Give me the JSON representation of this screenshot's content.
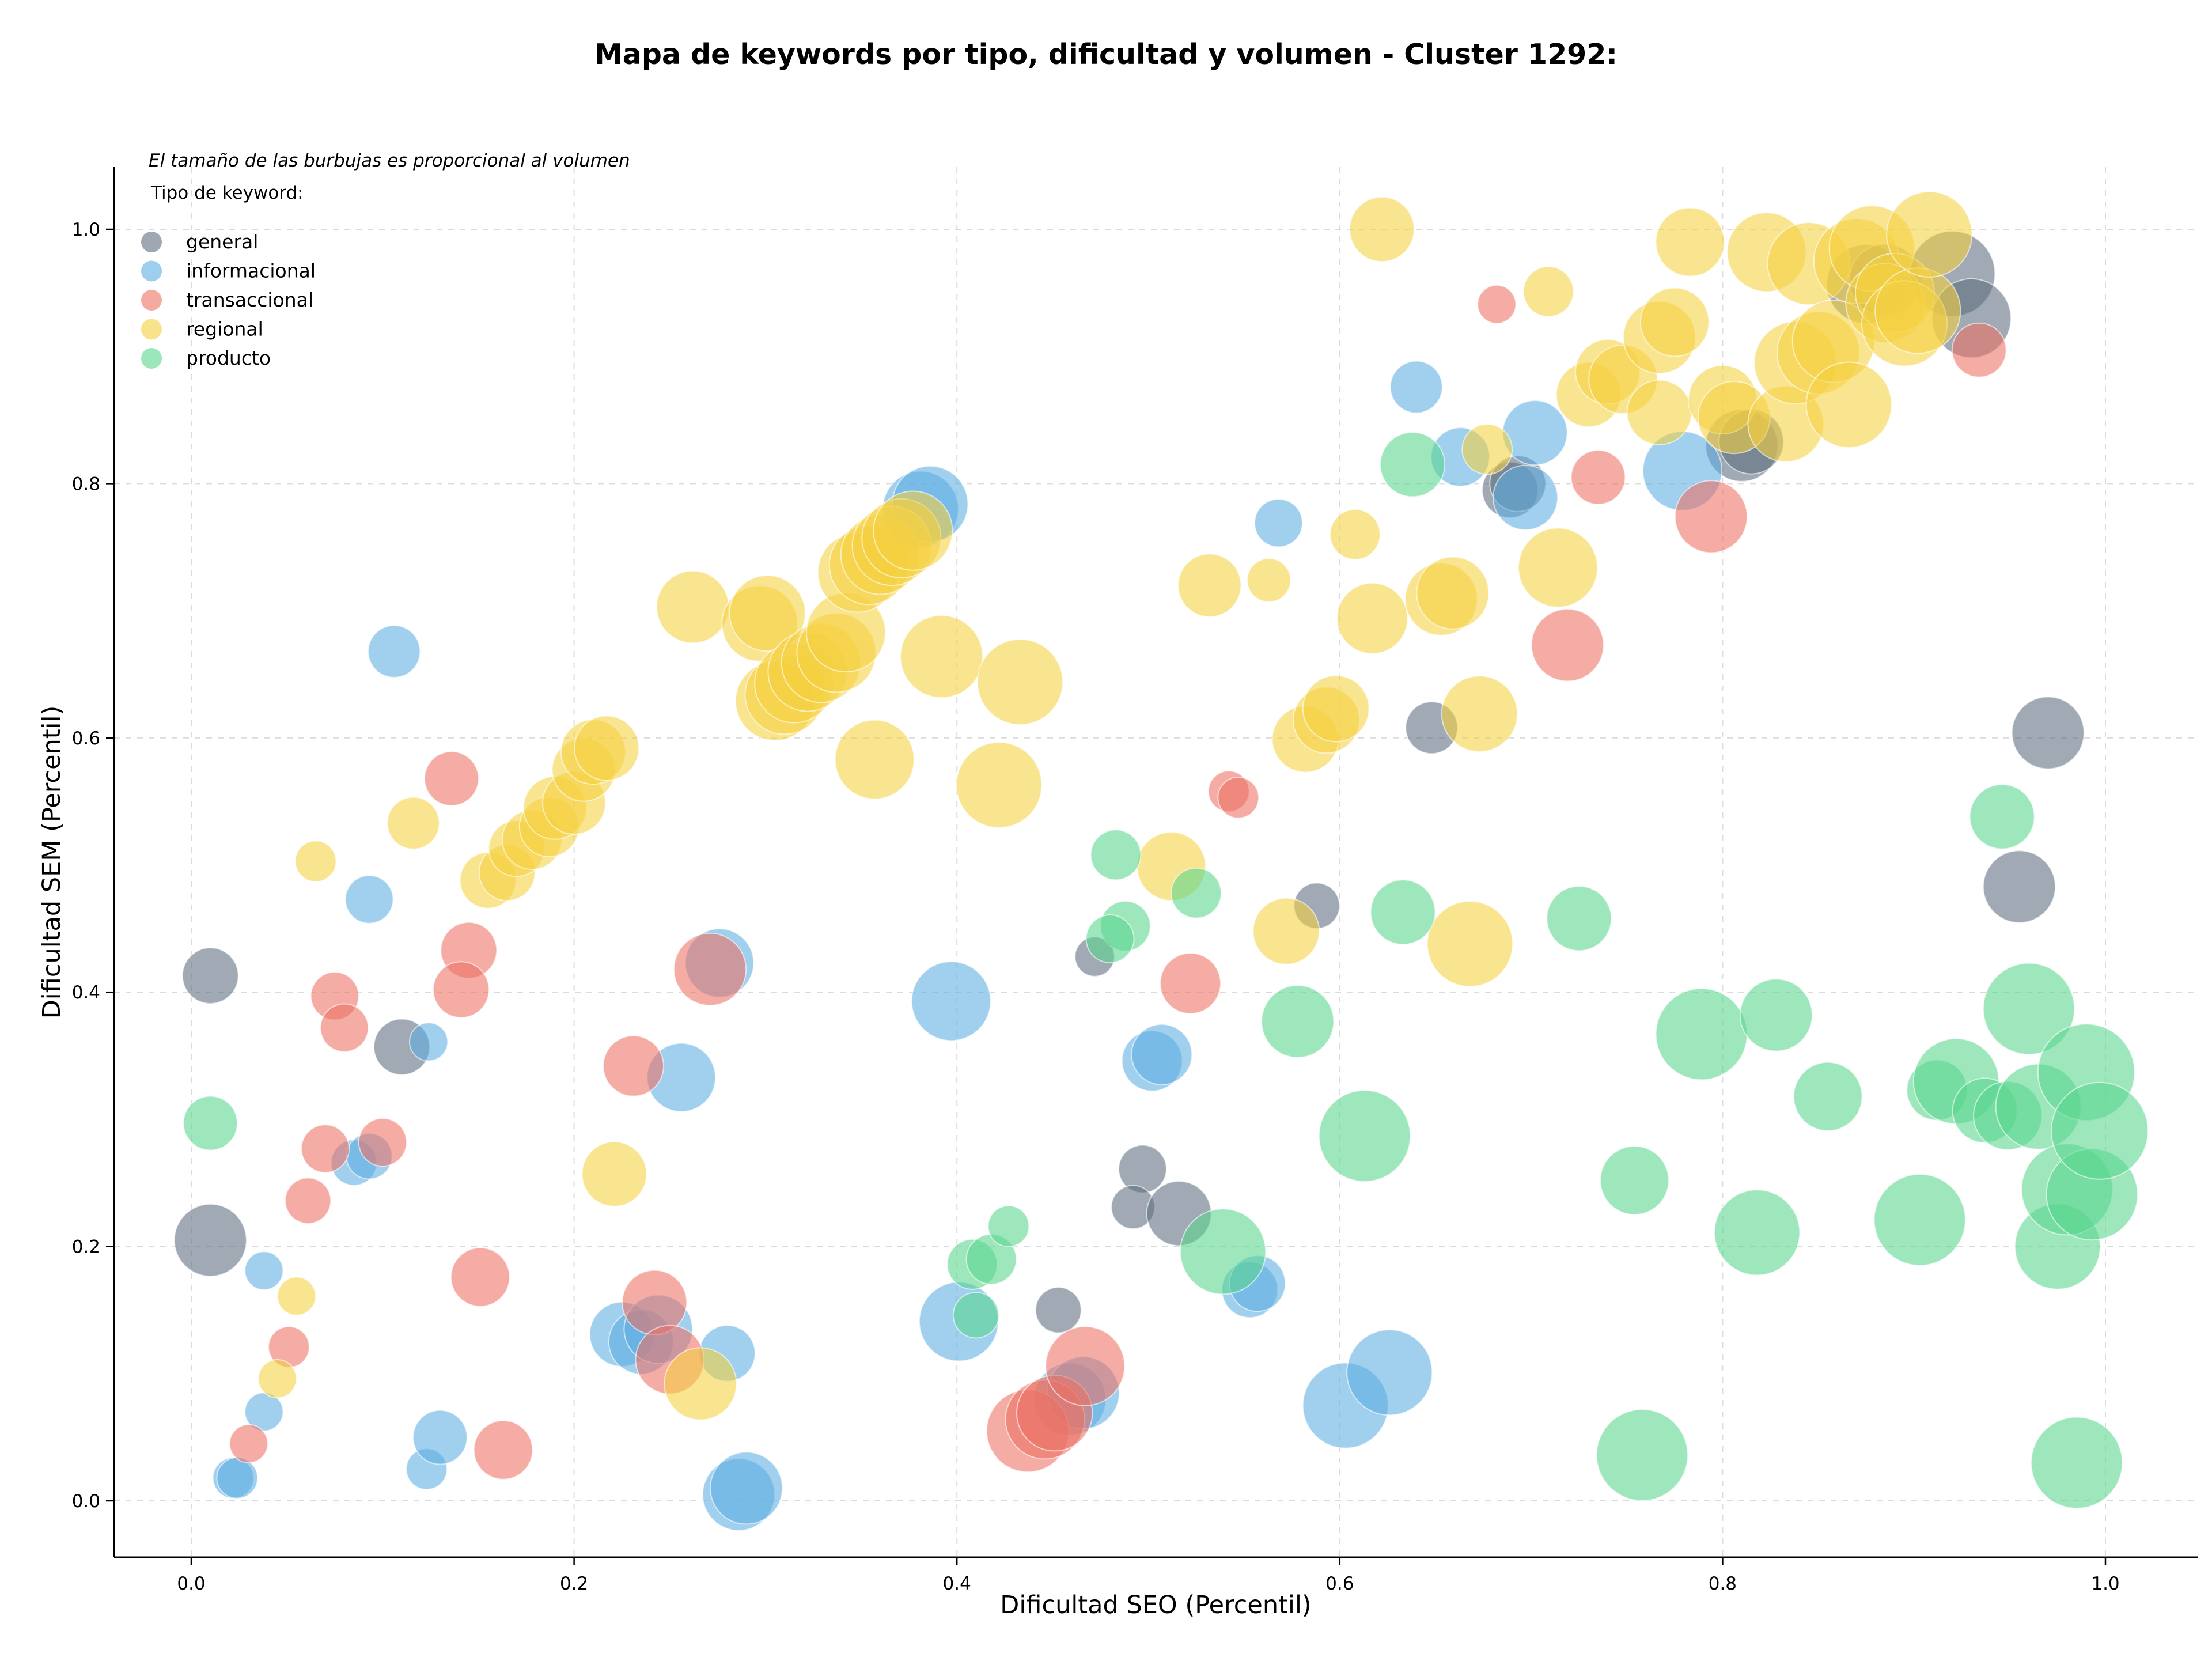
{
  "chart_data": {
    "type": "scatter",
    "title": "Mapa de keywords por tipo, dificultad y volumen - Cluster 1292:",
    "xlabel": "Dificultad SEO (Percentil)",
    "ylabel": "Dificultad SEM (Percentil)",
    "xlim": [
      -0.04,
      1.05
    ],
    "ylim": [
      -0.045,
      1.05
    ],
    "xticks": [
      "0.0",
      "0.2",
      "0.4",
      "0.6",
      "0.8",
      "1.0"
    ],
    "yticks": [
      "0.0",
      "0.2",
      "0.4",
      "0.6",
      "0.8",
      "1.0"
    ],
    "grid": true,
    "legend_position": "top-left",
    "size_note": "El tamaño de las burbujas es proporcional al volumen",
    "legend_title": "Tipo de keyword:",
    "series": [
      {
        "name": "general",
        "color": "#5d6d7e",
        "points": [
          [
            0.01,
            0.413,
            3
          ],
          [
            0.01,
            0.205,
            5
          ],
          [
            0.11,
            0.357,
            3
          ],
          [
            0.472,
            0.428,
            1.5
          ],
          [
            0.453,
            0.15,
            2
          ],
          [
            0.497,
            0.261,
            2.2
          ],
          [
            0.492,
            0.231,
            1.8
          ],
          [
            0.516,
            0.226,
            4
          ],
          [
            0.588,
            0.468,
            2
          ],
          [
            0.648,
            0.608,
            2.6
          ],
          [
            0.689,
            0.795,
            3
          ],
          [
            0.693,
            0.8,
            3
          ],
          [
            0.81,
            0.83,
            5
          ],
          [
            0.815,
            0.833,
            4
          ],
          [
            0.875,
            0.957,
            6
          ],
          [
            0.885,
            0.96,
            5
          ],
          [
            0.92,
            0.965,
            7
          ],
          [
            0.93,
            0.93,
            6
          ],
          [
            0.97,
            0.604,
            5
          ],
          [
            0.955,
            0.483,
            5
          ]
        ]
      },
      {
        "name": "informacional",
        "color": "#5dade2",
        "points": [
          [
            0.106,
            0.668,
            2.6
          ],
          [
            0.093,
            0.473,
            2.2
          ],
          [
            0.124,
            0.361,
            1.4
          ],
          [
            0.085,
            0.266,
            2
          ],
          [
            0.093,
            0.271,
            2
          ],
          [
            0.038,
            0.181,
            1.4
          ],
          [
            0.038,
            0.07,
            1.4
          ],
          [
            0.022,
            0.018,
            1.6
          ],
          [
            0.024,
            0.018,
            1.6
          ],
          [
            0.123,
            0.025,
            1.6
          ],
          [
            0.13,
            0.05,
            2.8
          ],
          [
            0.276,
            0.423,
            4.5
          ],
          [
            0.256,
            0.333,
            4.5
          ],
          [
            0.225,
            0.131,
            4
          ],
          [
            0.235,
            0.125,
            4
          ],
          [
            0.244,
            0.135,
            4.5
          ],
          [
            0.28,
            0.116,
            3
          ],
          [
            0.286,
            0.005,
            5
          ],
          [
            0.29,
            0.01,
            5
          ],
          [
            0.381,
            0.78,
            5.5
          ],
          [
            0.386,
            0.784,
            5.5
          ],
          [
            0.397,
            0.393,
            6
          ],
          [
            0.401,
            0.141,
            6
          ],
          [
            0.459,
            0.08,
            5
          ],
          [
            0.466,
            0.085,
            5
          ],
          [
            0.502,
            0.346,
            3.5
          ],
          [
            0.507,
            0.351,
            3.5
          ],
          [
            0.553,
            0.166,
            3
          ],
          [
            0.557,
            0.171,
            3
          ],
          [
            0.568,
            0.769,
            2.2
          ],
          [
            0.603,
            0.075,
            7
          ],
          [
            0.626,
            0.101,
            7
          ],
          [
            0.64,
            0.876,
            2.6
          ],
          [
            0.663,
            0.821,
            3.3
          ],
          [
            0.697,
            0.789,
            4
          ],
          [
            0.702,
            0.84,
            4
          ],
          [
            0.779,
            0.81,
            6
          ]
        ]
      },
      {
        "name": "transaccional",
        "color": "#ec7063",
        "points": [
          [
            0.136,
            0.568,
            2.8
          ],
          [
            0.145,
            0.433,
            3
          ],
          [
            0.141,
            0.402,
            3
          ],
          [
            0.075,
            0.397,
            2.2
          ],
          [
            0.08,
            0.372,
            2.2
          ],
          [
            0.07,
            0.277,
            2.2
          ],
          [
            0.1,
            0.282,
            2.2
          ],
          [
            0.061,
            0.236,
            2
          ],
          [
            0.051,
            0.121,
            1.6
          ],
          [
            0.03,
            0.045,
            1.4
          ],
          [
            0.151,
            0.176,
            3.3
          ],
          [
            0.163,
            0.04,
            3.3
          ],
          [
            0.231,
            0.342,
            3.5
          ],
          [
            0.242,
            0.156,
            4
          ],
          [
            0.25,
            0.111,
            4.5
          ],
          [
            0.271,
            0.418,
            5
          ],
          [
            0.437,
            0.055,
            6.5
          ],
          [
            0.446,
            0.064,
            6
          ],
          [
            0.451,
            0.069,
            5.5
          ],
          [
            0.467,
            0.106,
            6
          ],
          [
            0.522,
            0.407,
            3.5
          ],
          [
            0.542,
            0.558,
            1.6
          ],
          [
            0.547,
            0.553,
            1.6
          ],
          [
            0.682,
            0.941,
            1.4
          ],
          [
            0.719,
            0.673,
            5
          ],
          [
            0.735,
            0.805,
            2.8
          ],
          [
            0.794,
            0.774,
            5
          ],
          [
            0.934,
            0.905,
            2.8
          ]
        ]
      },
      {
        "name": "regional",
        "color": "#f4d03f",
        "points": [
          [
            0.065,
            0.503,
            1.6
          ],
          [
            0.116,
            0.533,
            2.6
          ],
          [
            0.155,
            0.488,
            3
          ],
          [
            0.165,
            0.494,
            3
          ],
          [
            0.17,
            0.513,
            3
          ],
          [
            0.178,
            0.52,
            3.4
          ],
          [
            0.187,
            0.53,
            3.4
          ],
          [
            0.19,
            0.545,
            3.8
          ],
          [
            0.2,
            0.549,
            3.8
          ],
          [
            0.205,
            0.575,
            3.8
          ],
          [
            0.21,
            0.589,
            4
          ],
          [
            0.217,
            0.592,
            4
          ],
          [
            0.055,
            0.161,
            1.4
          ],
          [
            0.045,
            0.096,
            1.4
          ],
          [
            0.221,
            0.257,
            4
          ],
          [
            0.266,
            0.092,
            5
          ],
          [
            0.262,
            0.703,
            5
          ],
          [
            0.297,
            0.69,
            5.5
          ],
          [
            0.301,
            0.698,
            5.5
          ],
          [
            0.305,
            0.629,
            6
          ],
          [
            0.31,
            0.634,
            6
          ],
          [
            0.315,
            0.643,
            6
          ],
          [
            0.322,
            0.652,
            6
          ],
          [
            0.329,
            0.659,
            6
          ],
          [
            0.337,
            0.667,
            6
          ],
          [
            0.342,
            0.683,
            6
          ],
          [
            0.348,
            0.73,
            6
          ],
          [
            0.354,
            0.736,
            6
          ],
          [
            0.36,
            0.744,
            6
          ],
          [
            0.366,
            0.751,
            6
          ],
          [
            0.371,
            0.757,
            6
          ],
          [
            0.377,
            0.763,
            6
          ],
          [
            0.357,
            0.583,
            6
          ],
          [
            0.392,
            0.664,
            6.5
          ],
          [
            0.422,
            0.563,
            7
          ],
          [
            0.433,
            0.644,
            7
          ],
          [
            0.512,
            0.499,
            4.5
          ],
          [
            0.532,
            0.72,
            3.8
          ],
          [
            0.563,
            0.724,
            1.8
          ],
          [
            0.572,
            0.448,
            4.2
          ],
          [
            0.582,
            0.599,
            4.2
          ],
          [
            0.593,
            0.614,
            4.2
          ],
          [
            0.598,
            0.623,
            4.2
          ],
          [
            0.608,
            0.76,
            2.4
          ],
          [
            0.617,
            0.694,
            4.8
          ],
          [
            0.622,
            1.0,
            4
          ],
          [
            0.653,
            0.709,
            5
          ],
          [
            0.659,
            0.714,
            5
          ],
          [
            0.668,
            0.438,
            7
          ],
          [
            0.673,
            0.619,
            5.5
          ],
          [
            0.677,
            0.827,
            2.4
          ],
          [
            0.709,
            0.951,
            2.4
          ],
          [
            0.714,
            0.734,
            6
          ],
          [
            0.73,
            0.87,
            4
          ],
          [
            0.74,
            0.888,
            4
          ],
          [
            0.748,
            0.882,
            4.5
          ],
          [
            0.767,
            0.856,
            4
          ],
          [
            0.767,
            0.915,
            5
          ],
          [
            0.775,
            0.927,
            4.5
          ],
          [
            0.783,
            0.99,
            4.5
          ],
          [
            0.8,
            0.866,
            4.5
          ],
          [
            0.806,
            0.852,
            5
          ],
          [
            0.823,
            0.982,
            6
          ],
          [
            0.833,
            0.847,
            5.5
          ],
          [
            0.838,
            0.895,
            6.5
          ],
          [
            0.845,
            0.973,
            6.5
          ],
          [
            0.85,
            0.903,
            6.5
          ],
          [
            0.858,
            0.912,
            6.5
          ],
          [
            0.866,
            0.862,
            7
          ],
          [
            0.87,
            0.975,
            7
          ],
          [
            0.878,
            0.985,
            7
          ],
          [
            0.885,
            0.942,
            6
          ],
          [
            0.89,
            0.95,
            6
          ],
          [
            0.895,
            0.926,
            7
          ],
          [
            0.902,
            0.936,
            7
          ],
          [
            0.908,
            0.996,
            7
          ]
        ]
      },
      {
        "name": "producto",
        "color": "#58d68d",
        "points": [
          [
            0.01,
            0.297,
            2.8
          ],
          [
            0.408,
            0.186,
            2.4
          ],
          [
            0.41,
            0.146,
            2
          ],
          [
            0.418,
            0.19,
            2.4
          ],
          [
            0.427,
            0.216,
            1.6
          ],
          [
            0.483,
            0.508,
            2.4
          ],
          [
            0.488,
            0.452,
            2.4
          ],
          [
            0.48,
            0.442,
            2.2
          ],
          [
            0.525,
            0.478,
            2.4
          ],
          [
            0.539,
            0.196,
            7
          ],
          [
            0.578,
            0.377,
            5
          ],
          [
            0.613,
            0.287,
            8
          ],
          [
            0.638,
            0.815,
            4
          ],
          [
            0.633,
            0.463,
            4
          ],
          [
            0.725,
            0.458,
            4
          ],
          [
            0.754,
            0.252,
            4.5
          ],
          [
            0.758,
            0.036,
            8
          ],
          [
            0.789,
            0.367,
            8
          ],
          [
            0.818,
            0.211,
            7
          ],
          [
            0.828,
            0.382,
            5
          ],
          [
            0.855,
            0.318,
            4.5
          ],
          [
            0.903,
            0.221,
            8
          ],
          [
            0.912,
            0.323,
            3.5
          ],
          [
            0.922,
            0.33,
            7
          ],
          [
            0.937,
            0.307,
            4
          ],
          [
            0.946,
            0.538,
            4
          ],
          [
            0.949,
            0.303,
            4.5
          ],
          [
            0.96,
            0.387,
            8
          ],
          [
            0.965,
            0.31,
            7
          ],
          [
            0.975,
            0.2,
            7
          ],
          [
            0.98,
            0.245,
            8
          ],
          [
            0.985,
            0.03,
            8
          ],
          [
            0.99,
            0.337,
            9
          ],
          [
            0.993,
            0.241,
            8
          ],
          [
            0.997,
            0.291,
            9
          ]
        ]
      }
    ]
  }
}
